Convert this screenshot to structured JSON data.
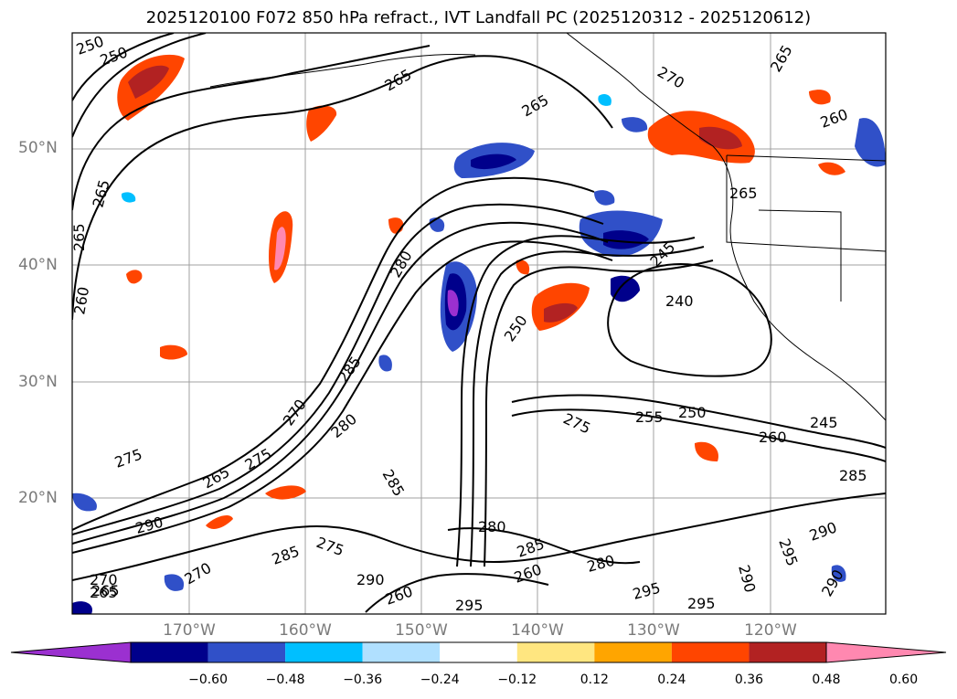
{
  "title": "2025120100 F072 850 hPa refract., IVT Landfall PC (2025120312 - 2025120612)",
  "latitude_labels": [
    "50°N",
    "40°N",
    "30°N",
    "20°N"
  ],
  "longitude_labels": [
    "170°W",
    "160°W",
    "150°W",
    "140°W",
    "130°W",
    "120°W"
  ],
  "contour_labels": [
    "250",
    "250",
    "265",
    "265",
    "265",
    "270",
    "265",
    "260",
    "265",
    "265",
    "260",
    "280",
    "245",
    "240",
    "250",
    "285",
    "270",
    "255",
    "250",
    "275",
    "260",
    "245",
    "285",
    "275",
    "265",
    "275",
    "290",
    "280",
    "285",
    "280",
    "290",
    "285",
    "295",
    "290",
    "285",
    "270",
    "260",
    "275",
    "270",
    "265",
    "290",
    "280",
    "290",
    "295",
    "295",
    "265",
    "260",
    "295"
  ],
  "colorbar": {
    "ticks": [
      "−0.60",
      "−0.48",
      "−0.36",
      "−0.24",
      "−0.12",
      "0.12",
      "0.24",
      "0.36",
      "0.48",
      "0.60"
    ],
    "colors": [
      "#9b30d0",
      "#00008b",
      "#3050c8",
      "#00bfff",
      "#b0e0ff",
      "#ffffff",
      "#ffe680",
      "#ffa500",
      "#ff4500",
      "#b22222",
      "#ff88b0"
    ]
  }
}
